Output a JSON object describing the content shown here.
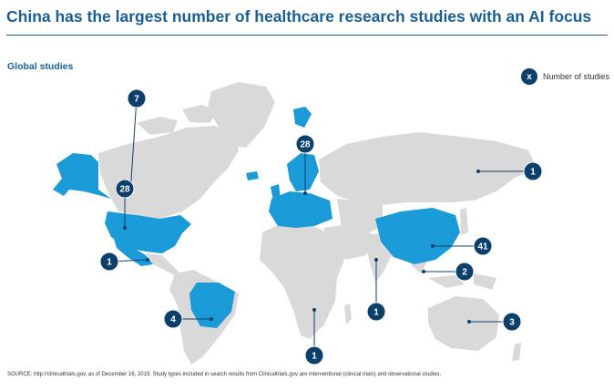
{
  "title": "China has the largest number of healthcare research studies with an AI focus",
  "subtitle": "Global studies",
  "legend": {
    "symbol": "x",
    "label": "Number of studies"
  },
  "colors": {
    "highlight": "#1a9ad6",
    "land": "#d9d9d9",
    "badge": "#0d3f6b",
    "title": "#1a5f94"
  },
  "markers": [
    {
      "id": "canada",
      "value": "7"
    },
    {
      "id": "usa",
      "value": "28"
    },
    {
      "id": "mexico",
      "value": "1"
    },
    {
      "id": "brazil",
      "value": "4"
    },
    {
      "id": "europe",
      "value": "28"
    },
    {
      "id": "africa",
      "value": "1"
    },
    {
      "id": "india",
      "value": "1"
    },
    {
      "id": "china",
      "value": "41"
    },
    {
      "id": "southeast-asia",
      "value": "2"
    },
    {
      "id": "russia",
      "value": "1"
    },
    {
      "id": "australia",
      "value": "3"
    }
  ],
  "source": "SOURCE: http://clinicaltrials.gov, as of December 16, 2019. Study types included in search results from Clinicaltrials.gov are interventional (clinical trials) and observational studies."
}
